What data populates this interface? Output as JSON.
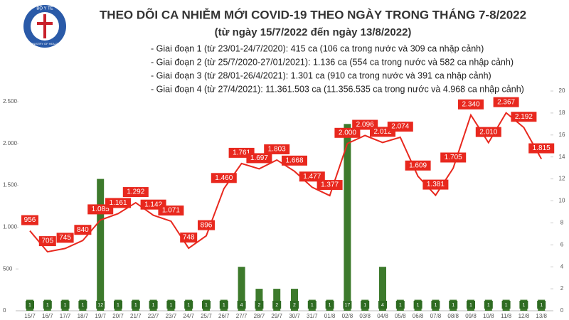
{
  "logo": {
    "top": "BỘ Y TẾ",
    "bottom": "MINISTRY OF HEALTH"
  },
  "chart_data": {
    "type": "line-bar",
    "title": "THEO DÕI CA NHIỄM MỚI COVID-19 THEO NGÀY TRONG THÁNG 7-8/2022",
    "subtitle": "(từ ngày 15/7/2022 đến ngày 13/8/2022)",
    "annotations": [
      "- Giai đoạn 1 (từ 23/01-24/7/2020): 415 ca (106 ca trong nước và 309 ca nhập cảnh)",
      "- Giai đoạn 2 (từ 25/7/2020-27/01/2021): 1.136 ca (554 ca trong nước và 582 ca nhập cảnh)",
      "- Giai đoạn 3 (từ 28/01-26/4/2021): 1.301 ca (910 ca trong nước và 391 ca nhập cảnh)",
      "- Giai đoạn 4 (từ 27/4/2021): 11.361.503 ca (11.356.535 ca trong nước và 4.968 ca nhập cảnh)"
    ],
    "categories": [
      "15/7",
      "16/7",
      "17/7",
      "18/7",
      "19/7",
      "20/7",
      "21/7",
      "22/7",
      "23/7",
      "24/7",
      "25/7",
      "26/7",
      "27/7",
      "28/7",
      "29/7",
      "30/7",
      "31/7",
      "01/8",
      "02/8",
      "03/8",
      "04/8",
      "05/8",
      "06/8",
      "07/8",
      "08/8",
      "09/8",
      "10/8",
      "11/8",
      "12/8",
      "13/8"
    ],
    "series": [
      {
        "type": "line",
        "color": "#e8281e",
        "values": [
          956,
          705,
          745,
          840,
          1085,
          1161,
          1292,
          1142,
          1071,
          748,
          896,
          1460,
          1761,
          1697,
          1803,
          1668,
          1477,
          1377,
          2000,
          2096,
          2012,
          2074,
          1609,
          1381,
          1705,
          2340,
          2010,
          2367,
          2192,
          1815
        ],
        "value_labels": [
          "956",
          "705",
          "745",
          "840",
          "1.085",
          "1.161",
          "1.292",
          "1.142",
          "1.071",
          "748",
          "896",
          "1.460",
          "1.761",
          "1.697",
          "1.803",
          "1.668",
          "1.477",
          "1.377",
          "2.000",
          "2.096",
          "2.012",
          "2.074",
          "1.609",
          "1.381",
          "1.705",
          "2.340",
          "2.010",
          "2.367",
          "2.192",
          "1.815"
        ]
      },
      {
        "type": "bar",
        "axis": "y2",
        "color": "#3d7a2c",
        "values": [
          1,
          1,
          1,
          1,
          12,
          1,
          1,
          1,
          1,
          1,
          1,
          1,
          4,
          2,
          2,
          2,
          1,
          1,
          17,
          1,
          4,
          1,
          1,
          1,
          1,
          1,
          1,
          1,
          1,
          1
        ]
      }
    ],
    "ylim": [
      0,
      2500
    ],
    "yticks": [
      0,
      500,
      {
        "value": 1000,
        "label": "1.000"
      },
      {
        "value": 1500,
        "label": "1.500"
      },
      {
        "value": 2000,
        "label": "2.000"
      },
      {
        "value": 2500,
        "label": "2.500"
      }
    ],
    "y2lim": [
      0,
      20
    ],
    "y2ticks": [
      0,
      2,
      4,
      6,
      8,
      10,
      12,
      14,
      16,
      18,
      20
    ]
  }
}
